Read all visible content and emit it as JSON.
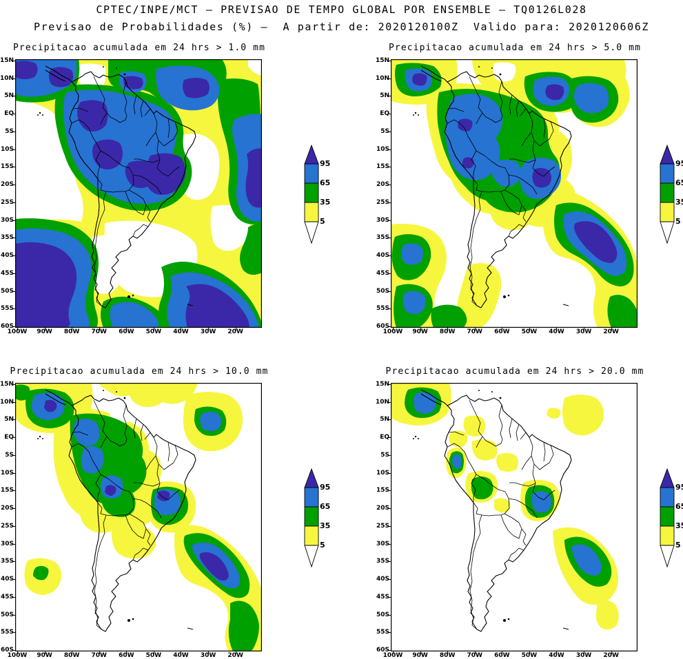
{
  "header": {
    "title": "CPTEC/INPE/MCT – PREVISAO DE TEMPO GLOBAL POR ENSEMBLE – TQ0126L028",
    "subtitle": "Previsao de Probabilidades (%) –  A partir de: 2020120100Z  Valido para: 2020120606Z"
  },
  "panels": [
    {
      "title": "Precipitacao acumulada em 24 hrs > 1.0 mm",
      "threshold_mm": 1.0
    },
    {
      "title": "Precipitacao acumulada em 24 hrs > 5.0 mm",
      "threshold_mm": 5.0
    },
    {
      "title": "Precipitacao acumulada em 24 hrs > 10.0 mm",
      "threshold_mm": 10.0
    },
    {
      "title": "Precipitacao acumulada em 24 hrs > 20.0 mm",
      "threshold_mm": 20.0
    }
  ],
  "axes": {
    "lat_labels": [
      "15N",
      "10N",
      "5N",
      "EQ",
      "5S",
      "10S",
      "15S",
      "20S",
      "25S",
      "30S",
      "35S",
      "40S",
      "45S",
      "50S",
      "55S",
      "60S"
    ],
    "lon_labels": [
      "100W",
      "90W",
      "80W",
      "70W",
      "60W",
      "50W",
      "40W",
      "30W",
      "20W"
    ]
  },
  "legend": {
    "labels": [
      "95",
      "65",
      "35",
      "5"
    ],
    "units": "%"
  },
  "colors": {
    "yellow": "#f6f63e",
    "green": "#00a000",
    "blue": "#2673d2",
    "indigo": "#3b28a8",
    "border": "#000000",
    "background": "#ffffff"
  },
  "chart_data": {
    "type": "heatmap",
    "subtype": "filled-contour probability maps (ensemble precipitation forecast)",
    "source": "CPTEC/INPE/MCT",
    "model": "TQ0126L028",
    "init_time": "2020120100Z",
    "valid_time": "2020120606Z",
    "region": "South America",
    "lon_range": [
      "100W",
      "10W"
    ],
    "lat_range": [
      "15N",
      "60S"
    ],
    "probability_levels_percent": [
      5,
      35,
      65,
      95
    ],
    "level_colors": {
      "below_5": "#ffffff",
      "5_to_35": "#f6f63e",
      "35_to_65": "#00a000",
      "65_to_95": "#2673d2",
      "above_95": "#3b28a8"
    },
    "panels": [
      {
        "threshold_mm": 1.0,
        "summary": "very widespread high probabilities: blue/indigo over Amazon, NW South America, far South Pacific and SW Atlantic"
      },
      {
        "threshold_mm": 5.0,
        "summary": "moderate coverage: green/blue over Amazon and central Brazil, blue-indigo SW Atlantic band"
      },
      {
        "threshold_mm": 10.0,
        "summary": "yellow/green over Amazon basin with scattered blue cores, strong SW Atlantic band with indigo core"
      },
      {
        "threshold_mm": 20.0,
        "summary": "mostly below 5%: isolated yellow patches, green/blue cores near Colombia, SE Brazil and SW Atlantic"
      }
    ]
  }
}
